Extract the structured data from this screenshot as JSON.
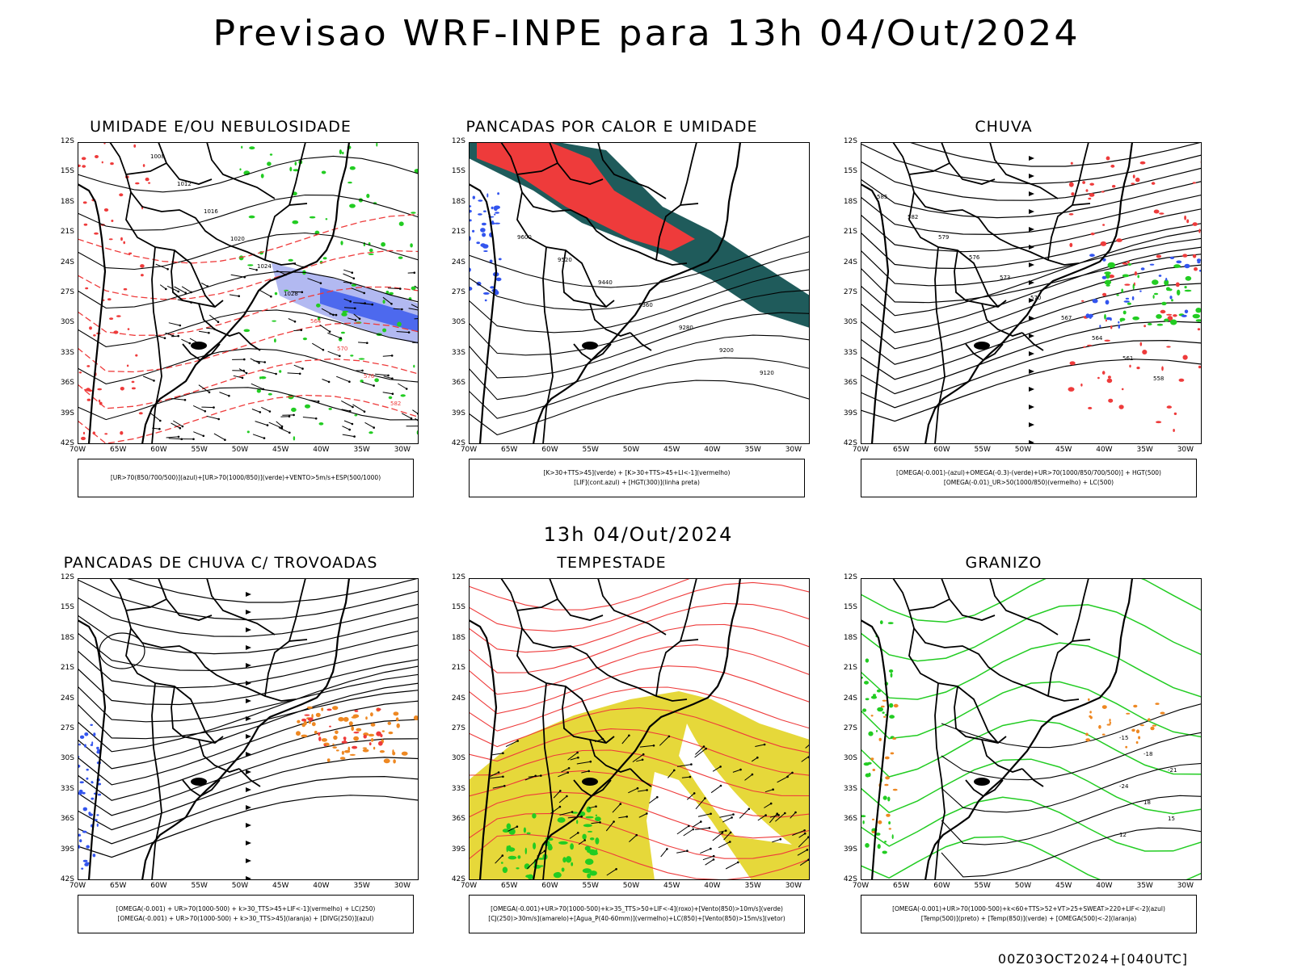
{
  "title": "Previsao WRF-INPE  para 13h 04/Out/2024",
  "mid_date": "13h 04/Out/2024",
  "footer": "00Z03OCT2024+[040UTC]",
  "lat_labels": [
    "12S",
    "15S",
    "18S",
    "21S",
    "24S",
    "27S",
    "30S",
    "33S",
    "36S",
    "39S",
    "42S"
  ],
  "lon_labels": [
    "70W",
    "65W",
    "60W",
    "55W",
    "50W",
    "45W",
    "40W",
    "35W",
    "30W"
  ],
  "colors": {
    "red": "#ee3b3b",
    "green": "#22cc22",
    "blue": "#3355ee",
    "teal": "#1f5b5b",
    "yellow": "#e6d83a",
    "orange": "#ee8822",
    "lightblue": "#9fa8ee"
  },
  "panels": [
    {
      "title": "UMIDADE E/OU NEBULOSIDADE",
      "legend": [
        "[UR>70(850/700/500)](azul)+[UR>70(1000/850)](verde)+VENTO>5m/s+ESP(500/1000)"
      ]
    },
    {
      "title": "PANCADAS POR CALOR E UMIDADE",
      "legend": [
        "[K>30+TTS>45](verde) + [K>30+TTS>45+LI<-1](vermelho)",
        "[LIF](cont.azul) + [HGT(300)](linha preta)"
      ]
    },
    {
      "title": "CHUVA",
      "legend": [
        "[OMEGA(-0.001)-(azul)+OMEGA(-0.3)-(verde)+UR>70(1000/850/700/500)] + HGT(500)",
        "[OMEGA(-0.01)_UR>50(1000/850)(vermelho) + LC(500)"
      ]
    },
    {
      "title": "PANCADAS DE CHUVA C/ TROVOADAS",
      "legend": [
        "[OMEGA(-0.001) + UR>70(1000-500) + k>30_TTS>45+LIF<-1](vermelho) + LC(250)",
        "[OMEGA(-0.001) + UR>70(1000-500) + k>30_TTS>45](laranja) + [DIVG(250)](azul)"
      ]
    },
    {
      "title": "TEMPESTADE",
      "legend": [
        "[OMEGA(-0.001)+UR>70(1000-500)+k>35_TTS>50+LIF<-4](roxo)+[Vento(850)>10m/s](verde)",
        "[CJ(250)>30m/s](amarelo)+[Agua_P(40-60mm)](vermelho)+LC(850)+[Vento(850)>15m/s](vetor)"
      ]
    },
    {
      "title": "GRANIZO",
      "legend": [
        "[OMEGA(-0.001)+UR>70(1000-500)+k<60+TTS>52+VT>25+SWEAT>220+LIF<-2](azul)",
        "[Temp(500)](preto) + [Temp(850)](verde) + [OMEGA(500)<-2](laranja)"
      ]
    }
  ],
  "contour_labels": {
    "p1": [
      "1008",
      "1012",
      "1016",
      "1020",
      "1024",
      "1028",
      "564",
      "570",
      "576",
      "582"
    ],
    "p2": [
      "9600",
      "9520",
      "9440",
      "9360",
      "9280",
      "9200",
      "9120"
    ],
    "p3": [
      "585",
      "582",
      "579",
      "576",
      "573",
      "570",
      "567",
      "564",
      "561",
      "558"
    ],
    "p6": [
      "-15",
      "-18",
      "-21",
      "-24",
      "18",
      "15",
      "12"
    ]
  }
}
